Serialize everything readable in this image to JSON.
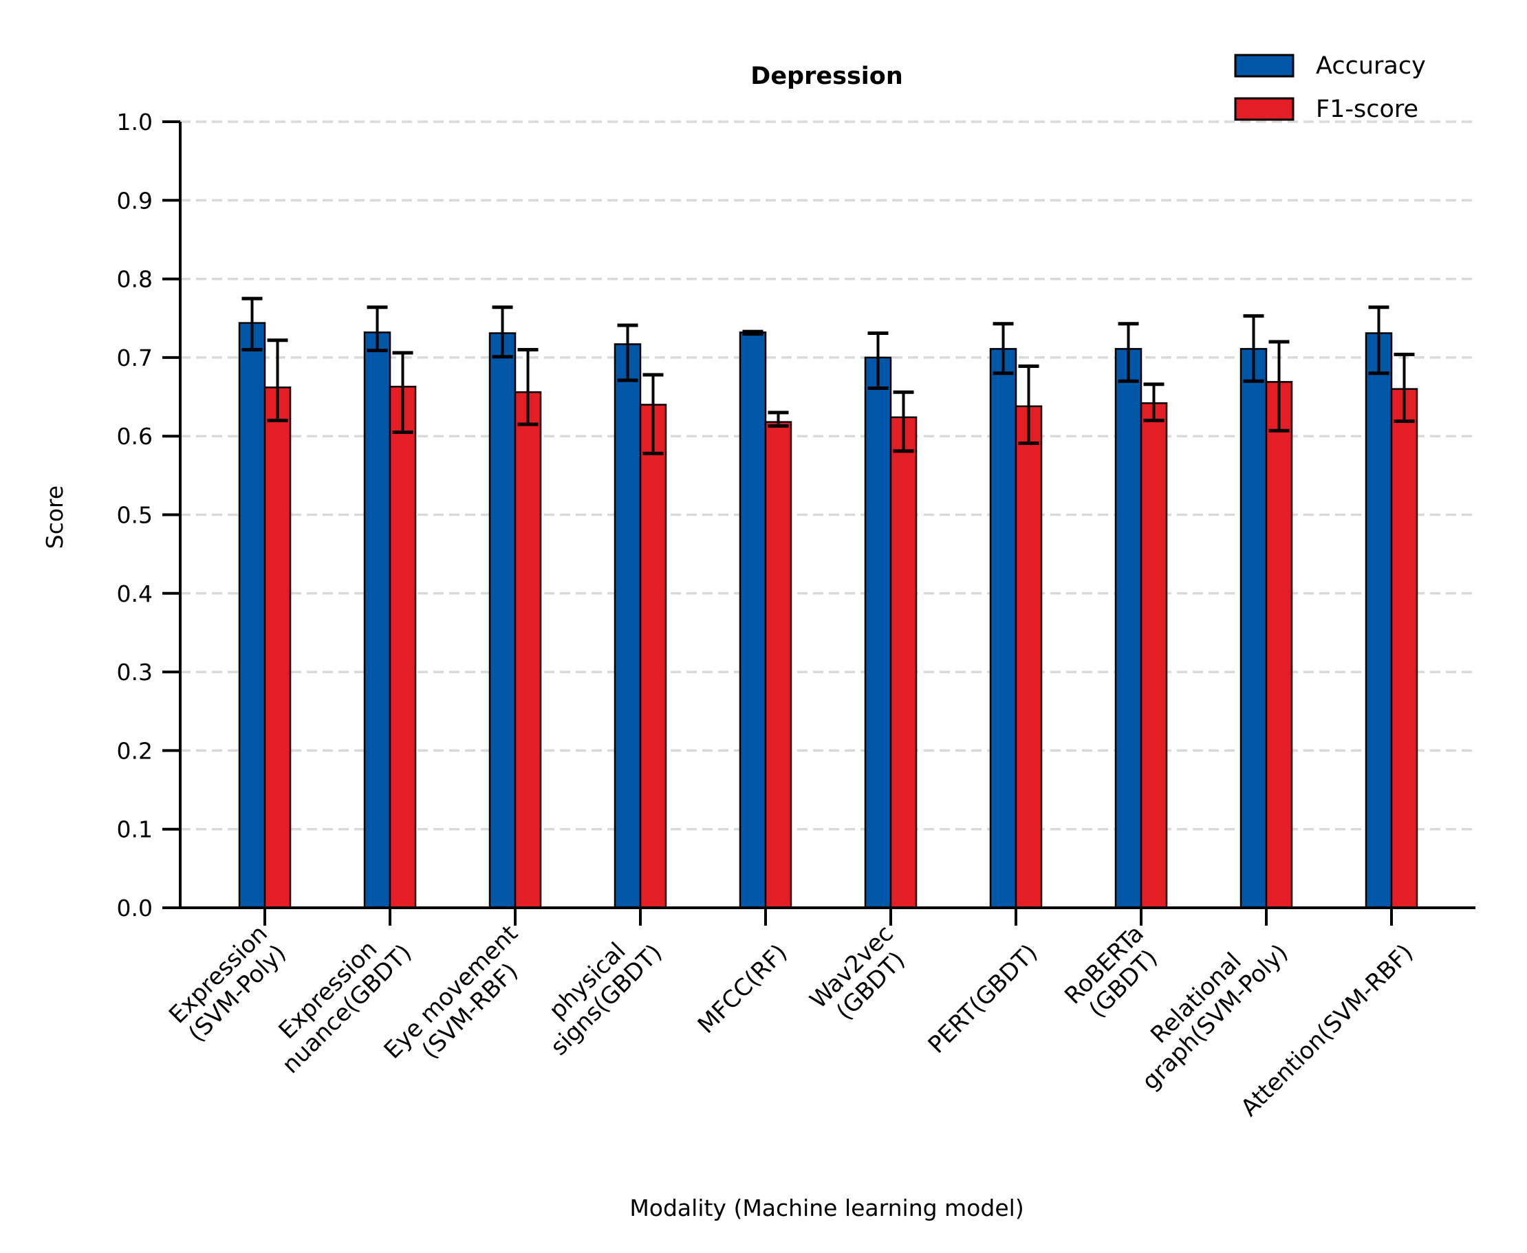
{
  "chart_data": {
    "type": "bar",
    "title": "Depression",
    "xlabel": "Modality (Machine learning model)",
    "ylabel": "Score",
    "ylim": [
      0,
      1.0
    ],
    "yticks": [
      "0.0",
      "0.1",
      "0.2",
      "0.3",
      "0.4",
      "0.5",
      "0.6",
      "0.7",
      "0.8",
      "0.9",
      "1.0"
    ],
    "grid": "y-dashed",
    "legend_position": "top-right",
    "categories": [
      [
        "Expression",
        "(SVM-Poly)"
      ],
      [
        "Expression",
        "nuance(GBDT)"
      ],
      [
        "Eye movement",
        "(SVM-RBF)"
      ],
      [
        "physical",
        "signs(GBDT)"
      ],
      [
        "MFCC(RF)"
      ],
      [
        "Wav2vec",
        "(GBDT)"
      ],
      [
        "PERT(GBDT)"
      ],
      [
        "RoBERTa",
        "(GBDT)"
      ],
      [
        "Relational",
        "graph(SVM-Poly)"
      ],
      [
        "Attention(SVM-RBF)"
      ]
    ],
    "series": [
      {
        "name": "Accuracy",
        "color": "#0057a8",
        "values": [
          0.744,
          0.732,
          0.731,
          0.717,
          0.732,
          0.7,
          0.711,
          0.711,
          0.711,
          0.731
        ],
        "err_low": [
          0.71,
          0.709,
          0.701,
          0.671,
          0.73,
          0.661,
          0.68,
          0.67,
          0.67,
          0.68
        ],
        "err_high": [
          0.775,
          0.764,
          0.764,
          0.741,
          0.733,
          0.731,
          0.743,
          0.743,
          0.753,
          0.764
        ]
      },
      {
        "name": "F1-score",
        "color": "#e31e24",
        "values": [
          0.662,
          0.663,
          0.656,
          0.64,
          0.618,
          0.624,
          0.638,
          0.642,
          0.669,
          0.66
        ],
        "err_low": [
          0.62,
          0.605,
          0.615,
          0.578,
          0.613,
          0.581,
          0.591,
          0.62,
          0.607,
          0.619
        ],
        "err_high": [
          0.722,
          0.706,
          0.71,
          0.678,
          0.63,
          0.656,
          0.689,
          0.666,
          0.72,
          0.704
        ]
      }
    ]
  }
}
